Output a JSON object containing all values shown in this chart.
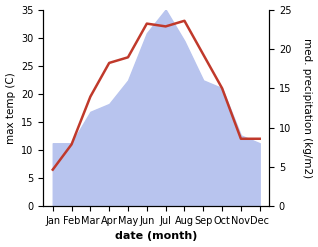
{
  "months": [
    "Jan",
    "Feb",
    "Mar",
    "Apr",
    "May",
    "Jun",
    "Jul",
    "Aug",
    "Sep",
    "Oct",
    "Nov",
    "Dec"
  ],
  "temperature": [
    6.5,
    11.0,
    19.5,
    25.5,
    26.5,
    32.5,
    32.0,
    33.0,
    27.0,
    21.0,
    12.0,
    12.0
  ],
  "precipitation": [
    8,
    8,
    12,
    13,
    16,
    22,
    25,
    21,
    16,
    15,
    9,
    8
  ],
  "temp_color": "#c0392b",
  "precip_color": "#b8c4ee",
  "background_color": "#ffffff",
  "xlabel": "date (month)",
  "ylabel_left": "max temp (C)",
  "ylabel_right": "med. precipitation (kg/m2)",
  "ylim_left": [
    0,
    35
  ],
  "ylim_right": [
    0,
    25
  ],
  "yticks_left": [
    0,
    5,
    10,
    15,
    20,
    25,
    30,
    35
  ],
  "yticks_right": [
    0,
    5,
    10,
    15,
    20,
    25
  ],
  "temp_linewidth": 1.8,
  "xlabel_fontsize": 8,
  "ylabel_fontsize": 7.5,
  "tick_fontsize": 7
}
